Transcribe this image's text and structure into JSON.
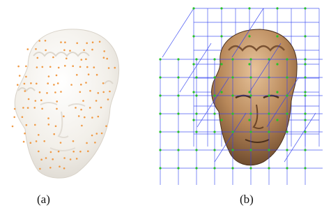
{
  "figure": {
    "panel_a": {
      "label": "(a)"
    },
    "panel_b": {
      "label": "(b)"
    }
  },
  "colors": {
    "head_pale": "#f2efe9",
    "head_bronze": "#b8885a",
    "sample_points": "#f09a45",
    "grid_lines": "#2f3ff0",
    "grid_nodes": "#27c427"
  }
}
